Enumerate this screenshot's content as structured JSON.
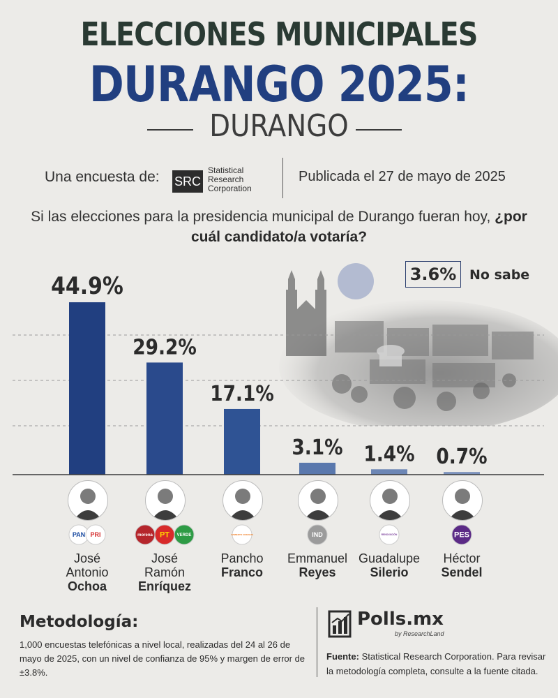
{
  "header": {
    "title_line1": "ELECCIONES MUNICIPALES",
    "title_line2": "DURANGO 2025:",
    "title_line3": "DURANGO"
  },
  "survey": {
    "label": "Una encuesta de:",
    "logo_mark": "SRC",
    "logo_text_1": "Statistical",
    "logo_text_2": "Research",
    "logo_text_3": "Corporation",
    "published": "Publicada el 27 de mayo de 2025"
  },
  "question": {
    "text_plain": "Si las elecciones para la presidencia municipal de Durango fueran hoy, ",
    "text_bold": "¿por cuál candidato/a votaría?"
  },
  "no_sabe": {
    "value_label": "3.6%",
    "label": "No sabe"
  },
  "chart_data": {
    "type": "bar",
    "categories": [
      "José Antonio Ochoa",
      "José Ramón Enríquez",
      "Pancho Franco",
      "Emmanuel Reyes",
      "Guadalupe Silerio",
      "Héctor Sendel"
    ],
    "values": [
      44.9,
      29.2,
      17.1,
      3.1,
      1.4,
      0.7
    ],
    "value_labels": [
      "44.9%",
      "29.2%",
      "17.1%",
      "3.1%",
      "1.4%",
      "0.7%"
    ],
    "ylim": [
      0,
      50
    ],
    "grid": true,
    "colors": [
      "#213f80",
      "#2a4a8c",
      "#2f5394",
      "#5a78ad",
      "#6c86b5",
      "#7d93bd"
    ]
  },
  "candidates": [
    {
      "first": "José",
      "middle": "Antonio",
      "last": "Ochoa",
      "party_icon": "pan-pri-logo",
      "parties": [
        "PAN",
        "PRI"
      ]
    },
    {
      "first": "José",
      "middle": "Ramón",
      "last": "Enríquez",
      "party_icon": "morena-pt-verde-logo",
      "parties": [
        "morena",
        "PT",
        "VERDE"
      ]
    },
    {
      "first": "Pancho",
      "middle": "",
      "last": "Franco",
      "party_icon": "movimiento-ciudadano-logo",
      "parties": [
        "MOVIMIENTO CIUDADANO"
      ]
    },
    {
      "first": "Emmanuel",
      "middle": "",
      "last": "Reyes",
      "party_icon": "independiente-logo",
      "parties": [
        "IND"
      ]
    },
    {
      "first": "Guadalupe",
      "middle": "",
      "last": "Silerio",
      "party_icon": "renovacion-logo",
      "parties": [
        "RENOVACIÓN"
      ]
    },
    {
      "first": "Héctor",
      "middle": "",
      "last": "Sendel",
      "party_icon": "pes-logo",
      "parties": [
        "PES"
      ]
    }
  ],
  "footer": {
    "methodology_title": "Metodología:",
    "methodology_text": "1,000 encuestas telefónicas a nivel local, realizadas del 24 al 26 de mayo de 2025, con un nivel de confianza de 95% y margen de error de ±3.8%.",
    "brand": "Polls.mx",
    "brand_sub": "by ResearchLand",
    "source_label": "Fuente:",
    "source_text": "Statistical Research Corporation. Para revisar la metodología completa, consulte a la fuente citada."
  }
}
